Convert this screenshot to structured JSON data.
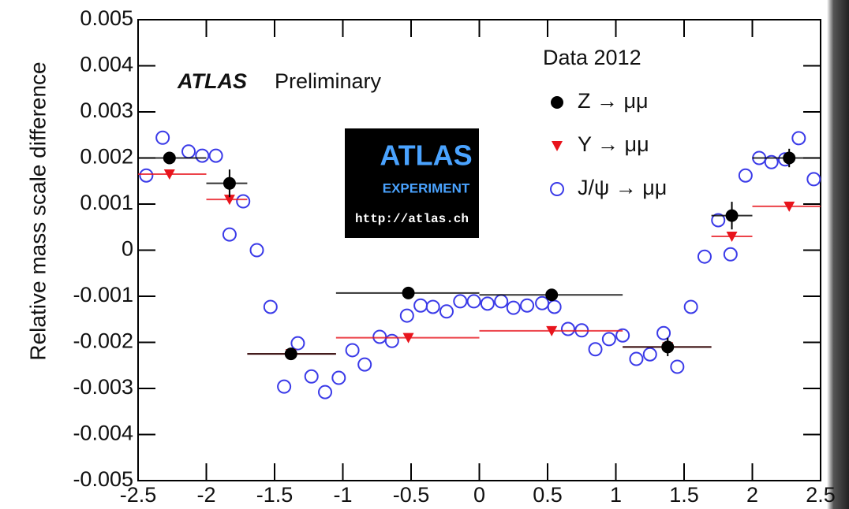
{
  "chart_data": {
    "type": "scatter",
    "y_label": "Relative mass scale difference",
    "annotation_bold": "ATLAS",
    "annotation": "Preliminary",
    "logo": [
      "ATLAS",
      "EXPERIMENT",
      "http://atlas.ch"
    ],
    "legend_title": "Data 2012",
    "xlim": [
      -2.5,
      2.5
    ],
    "xticks": [
      -2.5,
      -2,
      -1.5,
      -1,
      -0.5,
      0,
      0.5,
      1,
      1.5,
      2,
      2.5
    ],
    "ylim": [
      -0.005,
      0.005
    ],
    "yticks": [
      -0.005,
      -0.004,
      -0.003,
      -0.002,
      -0.001,
      0,
      0.001,
      0.002,
      0.003,
      0.004,
      0.005
    ],
    "series": [
      {
        "name": "Z → μμ",
        "color": "#000000",
        "marker": "filled-circle",
        "x": [
          -2.27,
          -1.83,
          -1.38,
          -0.52,
          0.53,
          1.38,
          1.85,
          2.27
        ],
        "values": [
          0.002,
          0.00145,
          -0.00225,
          -0.00093,
          -0.00097,
          -0.0021,
          0.00075,
          0.002
        ],
        "yerr": [
          0.0001,
          0.0003,
          0.0001,
          5e-05,
          5e-05,
          0.0002,
          0.0003,
          0.0002
        ],
        "xlow": [
          -2.5,
          -2.0,
          -1.7,
          -1.05,
          0,
          1.05,
          1.7,
          2.0
        ],
        "xhigh": [
          -2.0,
          -1.7,
          -1.05,
          0,
          1.05,
          1.7,
          2.0,
          2.5
        ]
      },
      {
        "name": "Υ → μμ",
        "color": "#e8141c",
        "marker": "triangle-down",
        "x": [
          -2.27,
          -1.83,
          -1.38,
          -0.52,
          0.53,
          1.38,
          1.85,
          2.27
        ],
        "values": [
          0.00165,
          0.0011,
          -0.00225,
          -0.0019,
          -0.00175,
          -0.0021,
          0.0003,
          0.00095
        ],
        "xlow": [
          -2.5,
          -2.0,
          -1.7,
          -1.05,
          0,
          1.05,
          1.7,
          2.0
        ],
        "xhigh": [
          -2.0,
          -1.7,
          -1.05,
          0,
          1.05,
          1.7,
          2.0,
          2.5
        ]
      },
      {
        "name": "J/ψ → μμ",
        "color": "#3a3ae8",
        "marker": "open-circle",
        "x": [
          -2.44,
          -2.32,
          -2.13,
          -2.03,
          -1.93,
          -1.83,
          -1.73,
          -1.63,
          -1.53,
          -1.43,
          -1.33,
          -1.23,
          -1.13,
          -1.03,
          -0.93,
          -0.84,
          -0.73,
          -0.64,
          -0.53,
          -0.43,
          -0.34,
          -0.24,
          -0.14,
          -0.04,
          0.06,
          0.16,
          0.25,
          0.35,
          0.46,
          0.55,
          0.65,
          0.75,
          0.85,
          0.95,
          1.05,
          1.15,
          1.25,
          1.35,
          1.45,
          1.55,
          1.65,
          1.75,
          1.84,
          1.95,
          2.05,
          2.14,
          2.24,
          2.34,
          2.45
        ],
        "values": [
          0.00162,
          0.00244,
          0.00214,
          0.00205,
          0.00205,
          0.00034,
          0.00106,
          0.0,
          -0.00123,
          -0.00296,
          -0.00202,
          -0.00274,
          -0.00308,
          -0.00277,
          -0.00217,
          -0.00248,
          -0.00188,
          -0.00197,
          -0.00142,
          -0.0012,
          -0.00123,
          -0.00133,
          -0.00111,
          -0.00111,
          -0.00116,
          -0.00111,
          -0.00125,
          -0.0012,
          -0.00115,
          -0.00123,
          -0.00171,
          -0.00174,
          -0.00215,
          -0.00193,
          -0.00185,
          -0.00236,
          -0.00226,
          -0.0018,
          -0.00253,
          -0.00123,
          -0.00014,
          0.00065,
          -9e-05,
          0.00162,
          0.002,
          0.00191,
          0.00197,
          0.00243,
          0.00154
        ]
      }
    ]
  }
}
